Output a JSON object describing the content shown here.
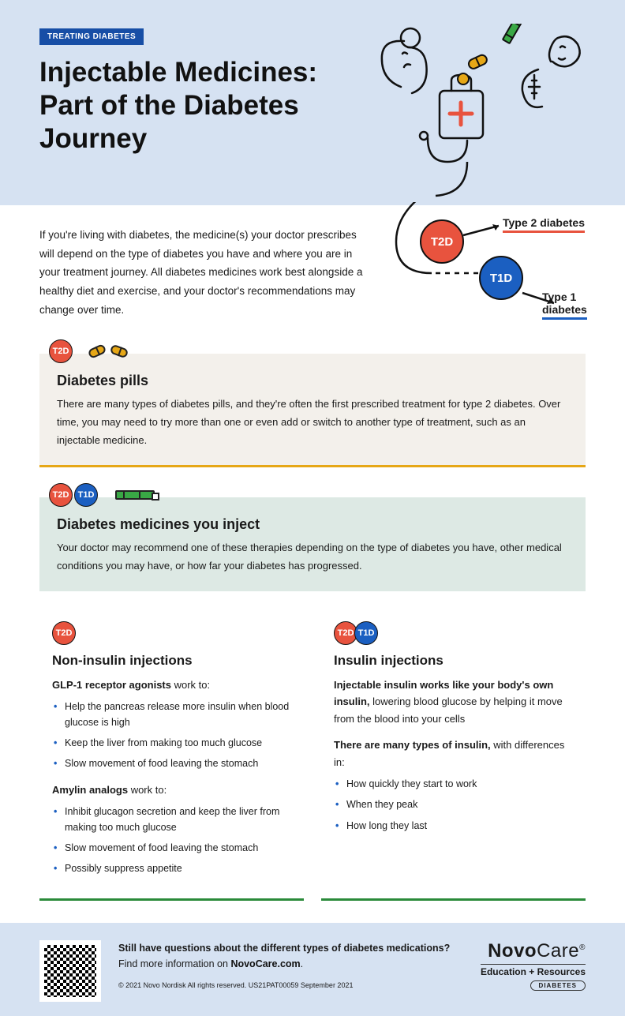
{
  "colors": {
    "header_bg": "#d6e2f2",
    "tag_bg": "#174ea6",
    "t2d": "#e8533e",
    "t1d": "#1b5fc1",
    "pill_yellow": "#e6a716",
    "pen_green": "#39a845",
    "card_pills_bg": "#f3f0eb",
    "card_inject_bg": "#dde9e4",
    "subcard_border": "#2a8a3a",
    "text": "#1a1a1a"
  },
  "header": {
    "tag": "TREATING DIABETES",
    "title": "Injectable Medicines: Part of the Diabetes Journey"
  },
  "intro": "If you're living with diabetes, the medicine(s) your doctor prescribes will depend on the type of diabetes you have and where you are in your treatment journey. All diabetes medicines work best alongside a healthy diet and exercise, and your doctor's recommendations may change over time.",
  "diagram": {
    "t2d_badge": "T2D",
    "t2d_label": "Type 2 diabetes",
    "t1d_badge": "T1D",
    "t1d_label": "Type 1 diabetes"
  },
  "card_pills": {
    "badge": "T2D",
    "title": "Diabetes pills",
    "body": "There are many types of diabetes pills, and they're often the first prescribed treatment for type 2 diabetes. Over time, you may need to try more than one or even add or switch to another type of treatment, such as an injectable medicine."
  },
  "card_inject": {
    "badge1": "T2D",
    "badge2": "T1D",
    "title": "Diabetes medicines you inject",
    "body": "Your doctor may recommend one of these therapies depending on the type of diabetes you have, other medical conditions you may have, or how far your diabetes has progressed."
  },
  "noninsulin": {
    "badge": "T2D",
    "title": "Non-insulin injections",
    "group1_label": "GLP-1 receptor agonists",
    "group1_tail": " work to:",
    "group1_items": [
      "Help the pancreas release more insulin when blood glucose is high",
      "Keep the liver from making too much glucose",
      "Slow movement of food leaving the stomach"
    ],
    "group2_label": "Amylin analogs",
    "group2_tail": " work to:",
    "group2_items": [
      "Inhibit glucagon secretion and keep the liver from making too much glucose",
      "Slow movement of food leaving the stomach",
      "Possibly suppress appetite"
    ]
  },
  "insulin": {
    "badge1": "T2D",
    "badge2": "T1D",
    "title": "Insulin injections",
    "lead_bold": "Injectable insulin works like your body's own insulin,",
    "lead_rest": " lowering blood glucose by helping it move from the blood into your cells",
    "types_bold": "There are many types of insulin,",
    "types_rest": " with differences in:",
    "items": [
      "How quickly they start to work",
      "When they peak",
      "How long they last"
    ]
  },
  "footer": {
    "question": "Still have questions about the different types of diabetes medications?",
    "cta_pre": "Find more information on ",
    "cta_link": "NovoCare.com",
    "cta_post": ".",
    "copyright": "© 2021 Novo Nordisk All rights reserved. US21PAT00059 September 2021",
    "brand_bold": "Novo",
    "brand_light": "Care",
    "brand_reg": "®",
    "brand_sub": "Education + Resources",
    "brand_pill": "DIABETES"
  }
}
